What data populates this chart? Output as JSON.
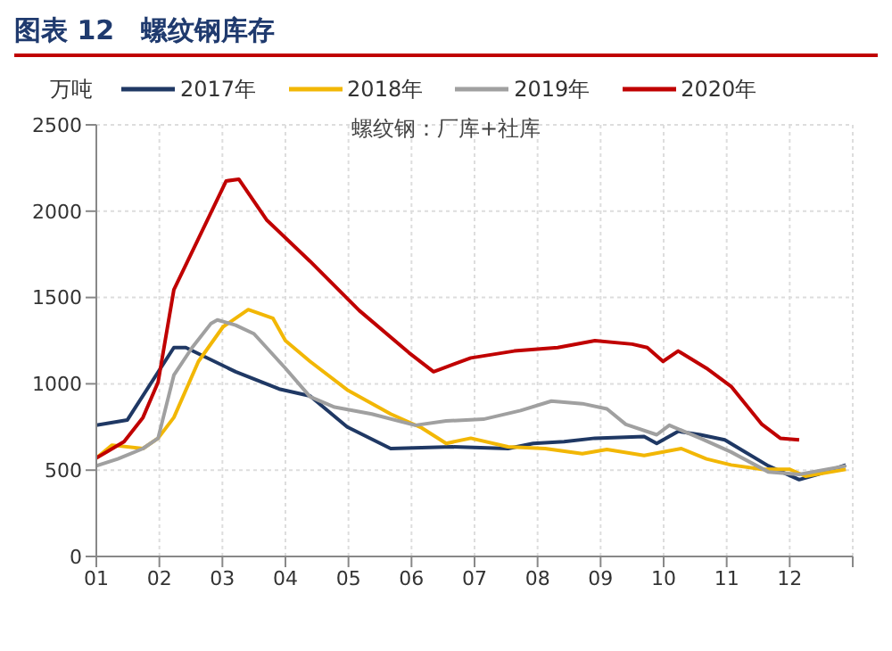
{
  "chart_data": {
    "type": "line",
    "title": "图表 12　螺纹钢库存",
    "subtitle": "螺纹钢：厂库+社库",
    "ylabel": "万吨",
    "xlim": [
      1,
      13
    ],
    "xticks": [
      {
        "value": 1,
        "label": "01"
      },
      {
        "value": 2,
        "label": "02"
      },
      {
        "value": 3,
        "label": "03"
      },
      {
        "value": 4,
        "label": "04"
      },
      {
        "value": 5,
        "label": "05"
      },
      {
        "value": 6,
        "label": "06"
      },
      {
        "value": 7,
        "label": "07"
      },
      {
        "value": 8,
        "label": "08"
      },
      {
        "value": 9,
        "label": "09"
      },
      {
        "value": 10,
        "label": "10"
      },
      {
        "value": 11,
        "label": "11"
      },
      {
        "value": 12,
        "label": "12"
      },
      {
        "value": 13,
        "label": null
      }
    ],
    "ylim": [
      0,
      2500
    ],
    "yticks": [
      0,
      500,
      1000,
      1500,
      2000,
      2500
    ],
    "grid": true,
    "legend": "top",
    "marker": "none",
    "line_style": "solid",
    "series": [
      {
        "name": "2017年",
        "color": "#1f3864",
        "x": [
          1.0,
          1.49,
          2.23,
          2.42,
          3.21,
          3.9,
          4.39,
          4.98,
          5.67,
          6.65,
          7.53,
          7.93,
          8.42,
          8.91,
          9.69,
          9.89,
          10.23,
          10.58,
          10.97,
          11.66,
          12.15,
          12.44,
          12.89
        ],
        "values": [
          760,
          790,
          1210,
          1210,
          1070,
          970,
          930,
          750,
          625,
          635,
          625,
          655,
          665,
          685,
          695,
          655,
          725,
          705,
          675,
          525,
          445,
          475,
          530
        ]
      },
      {
        "name": "2018年",
        "color": "#f2b705",
        "x": [
          1.0,
          1.25,
          1.74,
          1.98,
          2.23,
          2.62,
          3.01,
          3.41,
          3.8,
          4.0,
          4.39,
          4.98,
          5.67,
          6.16,
          6.55,
          6.94,
          7.53,
          8.12,
          8.71,
          9.1,
          9.69,
          10.28,
          10.68,
          11.07,
          11.56,
          12.0,
          12.25,
          12.89
        ],
        "values": [
          570,
          645,
          625,
          685,
          805,
          1130,
          1330,
          1430,
          1380,
          1250,
          1130,
          965,
          825,
          745,
          655,
          685,
          635,
          625,
          595,
          620,
          585,
          625,
          565,
          530,
          505,
          505,
          465,
          505
        ]
      },
      {
        "name": "2019年",
        "color": "#a0a0a0",
        "x": [
          1.0,
          1.34,
          1.74,
          1.98,
          2.23,
          2.52,
          2.82,
          2.92,
          3.21,
          3.5,
          4.0,
          4.39,
          4.78,
          5.37,
          6.06,
          6.55,
          7.14,
          7.73,
          8.22,
          8.71,
          9.1,
          9.4,
          9.89,
          10.09,
          10.58,
          11.07,
          11.66,
          12.15,
          12.89
        ],
        "values": [
          525,
          565,
          625,
          685,
          1050,
          1210,
          1350,
          1370,
          1340,
          1290,
          1090,
          925,
          865,
          825,
          760,
          785,
          795,
          845,
          900,
          885,
          855,
          765,
          705,
          760,
          685,
          605,
          490,
          475,
          525
        ]
      },
      {
        "name": "2020年",
        "color": "#c00000",
        "x": [
          1.0,
          1.44,
          1.74,
          1.98,
          2.23,
          3.06,
          3.26,
          3.7,
          4.39,
          5.17,
          5.96,
          6.35,
          6.94,
          7.63,
          8.32,
          8.91,
          9.5,
          9.74,
          9.99,
          10.23,
          10.68,
          11.07,
          11.56,
          11.85,
          12.15
        ],
        "values": [
          570,
          665,
          805,
          1010,
          1545,
          2175,
          2185,
          1950,
          1710,
          1425,
          1180,
          1070,
          1150,
          1190,
          1210,
          1250,
          1230,
          1210,
          1130,
          1190,
          1090,
          985,
          765,
          685,
          675
        ]
      }
    ]
  }
}
